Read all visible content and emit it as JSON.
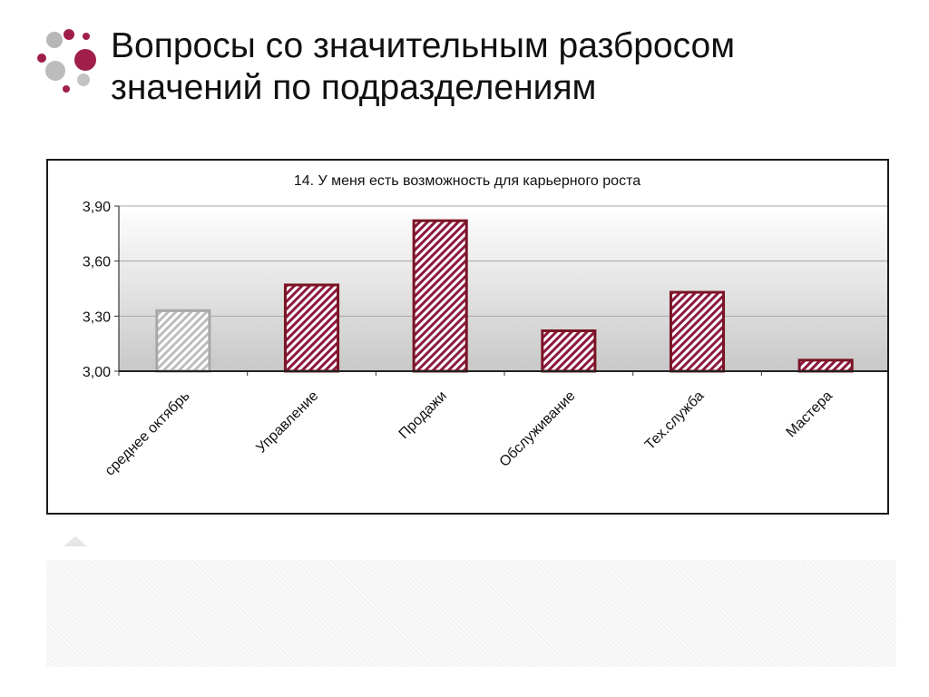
{
  "slide": {
    "title_line1": "Вопросы со значительным разбросом",
    "title_line2": "значений по подразделениям"
  },
  "icons": {
    "logo": "dots-cluster-logo",
    "arrow": "triangle-up-icon"
  },
  "colors": {
    "accent": "#a01f4a",
    "bar_border": "#7a1426",
    "avg_border": "#a8a8a8"
  },
  "chart_data": {
    "type": "bar",
    "title": "14. У меня есть возможность для карьерного роста",
    "categories": [
      "среднее октябрь",
      "Управление",
      "Продажи",
      "Обслуживание",
      "Тех.служба",
      "Мастера"
    ],
    "values": [
      3.33,
      3.47,
      3.82,
      3.22,
      3.43,
      3.06
    ],
    "ylim": [
      3.0,
      3.9
    ],
    "yticks": [
      3.0,
      3.3,
      3.6,
      3.9
    ],
    "ytick_labels": [
      "3,00",
      "3,30",
      "3,60",
      "3,90"
    ],
    "grid": true,
    "legend": "none",
    "xlabel": "",
    "ylabel": ""
  }
}
